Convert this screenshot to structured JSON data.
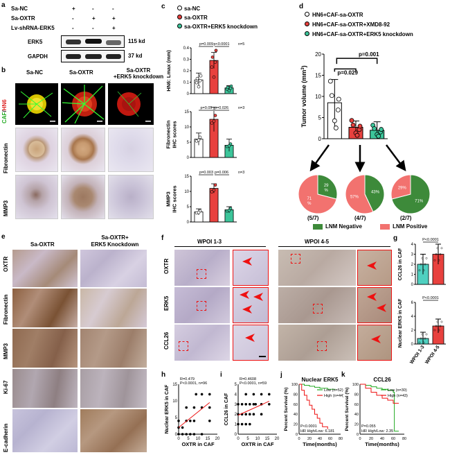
{
  "panels": {
    "a": {
      "label": "a",
      "row_labels": [
        "Sa-NC",
        "Sa-OXTR",
        "Lv-shRNA-ERK5"
      ],
      "signs": [
        [
          "+",
          "-",
          "-"
        ],
        [
          "-",
          "+",
          "+"
        ],
        [
          "-",
          "-",
          "+"
        ]
      ],
      "blots": [
        {
          "name": "ERK5",
          "size": "115 kd"
        },
        {
          "name": "GAPDH",
          "size": "37 kd"
        }
      ]
    },
    "b": {
      "label": "b",
      "cols": [
        "Sa-NC",
        "Sa-OXTR",
        "Sa-OXTR\n+ERK5 knockdown"
      ],
      "rows": [
        "CAF/HN6",
        "Fibronectin",
        "MMP3"
      ],
      "row0_caf": "CAF",
      "row0_hn6": "HN6"
    },
    "c": {
      "label": "c",
      "legend": [
        "sa-NC",
        "sa-OXTR",
        "sa-OXTR+ERK5 knockdown"
      ]
    },
    "d": {
      "label": "d",
      "legend": [
        "HN6+CAF-sa-OXTR",
        "HN6+CAF-sa-OXTR+XMD8-92",
        "HN6+CAF-sa-OXTR+ERK5 knockdown"
      ],
      "pies": [
        {
          "ratio": "(5/7)",
          "negative_label": "29\n%",
          "positive_label": "71\n%",
          "negative": 29,
          "positive": 71
        },
        {
          "ratio": "(4/7)",
          "negative_label": "43%",
          "positive_label": "57%",
          "negative": 43,
          "positive": 57
        },
        {
          "ratio": "(2/7)",
          "negative_label": "71%",
          "positive_label": "29%",
          "negative": 71,
          "positive": 29
        }
      ],
      "pie_legend": [
        "LNM Negative",
        "LNM Positive"
      ]
    },
    "e": {
      "label": "e",
      "cols": [
        "Sa-OXTR",
        "Sa-OXTR+\nERK5 Knockdown"
      ],
      "rows": [
        "OXTR",
        "Fibronectin",
        "MMP3",
        "Ki-67",
        "E-cadherin"
      ]
    },
    "f": {
      "label": "f",
      "groups": [
        "WPOI 1-3",
        "WPOI 4-5"
      ],
      "rows": [
        "OXTR",
        "ERK5",
        "CCL26"
      ]
    },
    "g": {
      "label": "g"
    },
    "h": {
      "label": "h"
    },
    "i": {
      "label": "i"
    },
    "j": {
      "label": "j"
    },
    "k": {
      "label": "k"
    }
  },
  "colors": {
    "nc": "#ffffff",
    "oxtr": "#e8413e",
    "knock": "#3cc59a",
    "pie_neg": "#3d8a3a",
    "pie_pos": "#f2726f",
    "cyan": "#4fd0c0"
  },
  "chart_data": [
    {
      "id": "c1",
      "type": "bar",
      "title": "",
      "ylabel": "HN6: Lmax (mm)",
      "categories": [
        "sa-NC",
        "sa-OXTR",
        "sa-OXTR+ERK5 knockdown"
      ],
      "values": [
        0.12,
        0.29,
        0.05
      ],
      "errors": [
        0.06,
        0.07,
        0.02
      ],
      "ylim": [
        0,
        0.4
      ],
      "yticks": [
        0.0,
        0.1,
        0.2,
        0.3,
        0.4
      ],
      "annotations": [
        "p=0.009",
        "p<0.0001",
        "n=5"
      ]
    },
    {
      "id": "c2",
      "type": "bar",
      "ylabel": "Fibronectin\nIHC scores",
      "categories": [
        "sa-NC",
        "sa-OXTR",
        "sa-OXTR+ERK5 knockdown"
      ],
      "values": [
        6,
        12.5,
        4
      ],
      "errors": [
        2,
        4,
        2
      ],
      "ylim": [
        0,
        15
      ],
      "yticks": [
        0,
        5,
        10,
        15
      ],
      "annotations": [
        "p=0.05",
        "p=0.026",
        "n=3"
      ]
    },
    {
      "id": "c3",
      "type": "bar",
      "ylabel": "MMP3\nIHC scores",
      "categories": [
        "sa-NC",
        "sa-OXTR",
        "sa-OXTR+ERK5 knockdown"
      ],
      "values": [
        3.3,
        11,
        4
      ],
      "errors": [
        1,
        1.5,
        1
      ],
      "ylim": [
        0,
        15
      ],
      "yticks": [
        0,
        5,
        10,
        15
      ],
      "annotations": [
        "p=0.003",
        "p=0.006",
        "n=3"
      ]
    },
    {
      "id": "d1",
      "type": "bar",
      "ylabel": "Tumor volume (mm",
      "ylabel_sup": "3",
      "ylabel_close": ")",
      "categories": [
        "HN6+CAF-sa-OXTR",
        "HN6+CAF-sa-OXTR+XMD8-92",
        "HN6+CAF-sa-OXTR+ERK5 knockdown"
      ],
      "values": [
        8.5,
        2.7,
        2.0
      ],
      "errors": [
        5.5,
        1.5,
        2.0
      ],
      "ylim": [
        0,
        20
      ],
      "yticks": [
        0,
        5,
        10,
        15,
        20
      ],
      "annotations": [
        "p=0.029",
        "p=0.001"
      ]
    },
    {
      "id": "g1",
      "type": "bar",
      "ylabel": "CCL26 in CAF",
      "categories": [
        "WPOI 1-3",
        "WPOI 4-5"
      ],
      "values": [
        2.0,
        3.0
      ],
      "errors": [
        1.0,
        1.0
      ],
      "ylim": [
        0,
        4
      ],
      "yticks": [
        0,
        1,
        2,
        3,
        4
      ],
      "annotations": [
        "P<0.0001"
      ]
    },
    {
      "id": "g2",
      "type": "bar",
      "ylabel": "Nuclear ERK5 in CAF",
      "categories": [
        "WPOI 1-3",
        "WPOI 4-5"
      ],
      "values": [
        0.8,
        2.6
      ],
      "errors": [
        0.9,
        1.0
      ],
      "ylim": [
        0,
        6
      ],
      "yticks": [
        0,
        2,
        4,
        6
      ],
      "annotations": [
        "P<0.0001"
      ]
    },
    {
      "id": "h1",
      "type": "scatter",
      "xlabel": "OXTR in CAF",
      "ylabel": "Nuclear ERK5 in CAF",
      "xlim": [
        0,
        20
      ],
      "ylim": [
        0,
        15
      ],
      "xticks": [
        0,
        5,
        10,
        15,
        20
      ],
      "yticks": [
        0,
        5,
        10,
        15
      ],
      "annotations": [
        "R=0.479",
        "P<0.0001, n=96"
      ]
    },
    {
      "id": "i1",
      "type": "scatter",
      "xlabel": "OXTR in CAF",
      "ylabel": "CCL26 in CAF",
      "xlim": [
        0,
        20
      ],
      "ylim": [
        0,
        5
      ],
      "xticks": [
        0,
        5,
        10,
        15,
        20
      ],
      "yticks": [
        0,
        1,
        2,
        3,
        4,
        5
      ],
      "annotations": [
        "R=0.4608",
        "P<0.0001, n=59"
      ]
    },
    {
      "id": "j1",
      "type": "line",
      "title": "Nuclear ERK5",
      "xlabel": "Time(months)",
      "ylabel": "Percent Survival (%)",
      "xlim": [
        0,
        80
      ],
      "ylim": [
        0,
        100
      ],
      "xticks": [
        0,
        20,
        40,
        60,
        80
      ],
      "yticks": [
        0,
        20,
        40,
        60,
        80,
        100
      ],
      "series": [
        {
          "name": "Low (n=52)"
        },
        {
          "name": "High (n=44)"
        }
      ],
      "annotations": [
        "P<0.0001",
        "HR High/Low: 6.181"
      ]
    },
    {
      "id": "k1",
      "type": "line",
      "title": "CCL26",
      "xlabel": "Time(months)",
      "ylabel": "Percent Survival (%)",
      "xlim": [
        0,
        80
      ],
      "ylim": [
        0,
        100
      ],
      "xticks": [
        0,
        20,
        40,
        60,
        80
      ],
      "yticks": [
        0,
        20,
        40,
        60,
        80,
        100
      ],
      "series": [
        {
          "name": "Low (n=30)"
        },
        {
          "name": "High (n=43)"
        }
      ],
      "annotations": [
        "P=0.055",
        "HR High/Low: 2.35"
      ]
    }
  ]
}
